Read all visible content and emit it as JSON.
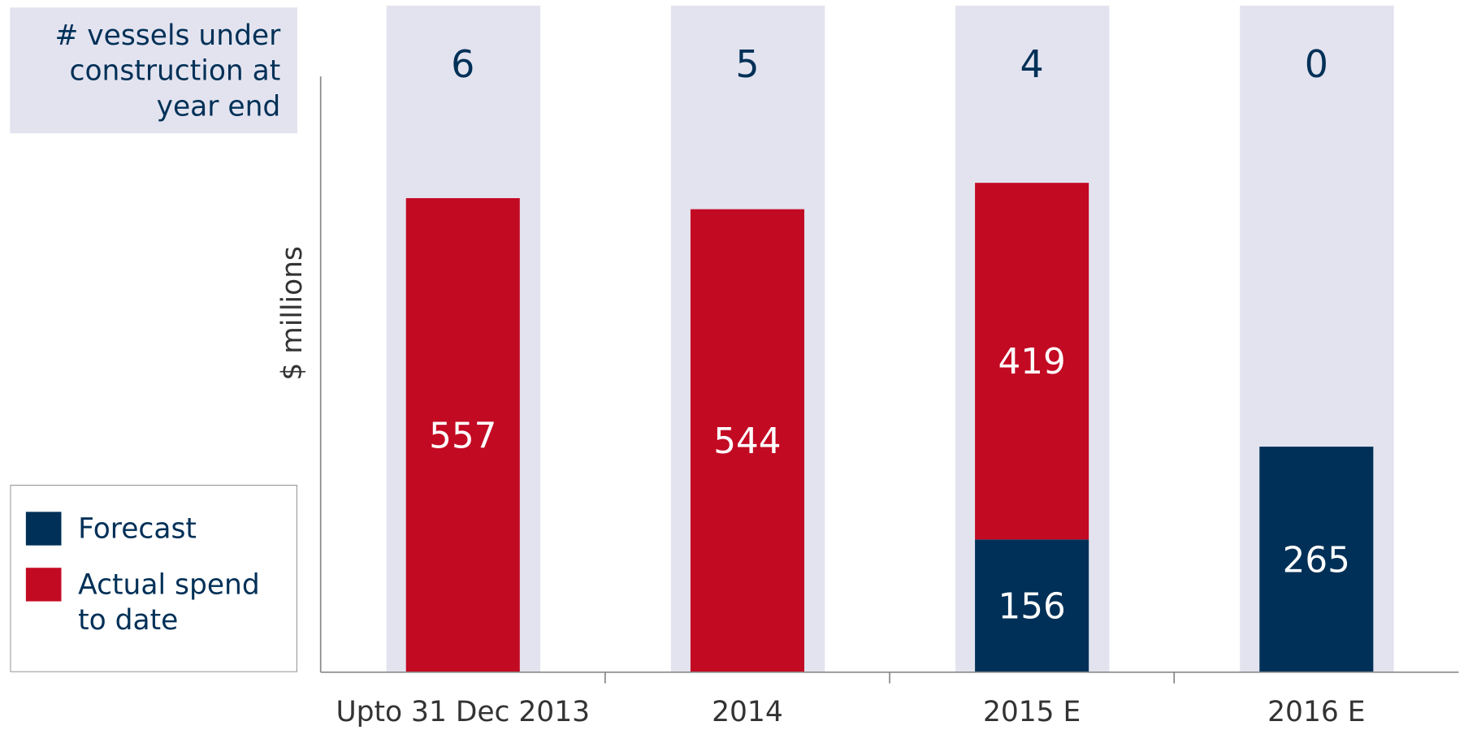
{
  "chart_data": {
    "type": "stacked_bar",
    "categories": [
      "Upto 31 Dec 2013",
      "2014",
      "2015 E",
      "2016 E"
    ],
    "series": [
      {
        "name": "Forecast",
        "color": "#003057",
        "values": [
          null,
          null,
          156,
          265
        ]
      },
      {
        "name": "Actual spend to date",
        "color": "#c30a23",
        "values": [
          557,
          544,
          419,
          null
        ]
      }
    ],
    "ylabel": "$ millions",
    "ylim": [
      0,
      700
    ],
    "vessels_label": "# vessels under construction at year end",
    "vessels": [
      6,
      5,
      4,
      0
    ],
    "vessels_band_color": "#e3e3ef"
  }
}
